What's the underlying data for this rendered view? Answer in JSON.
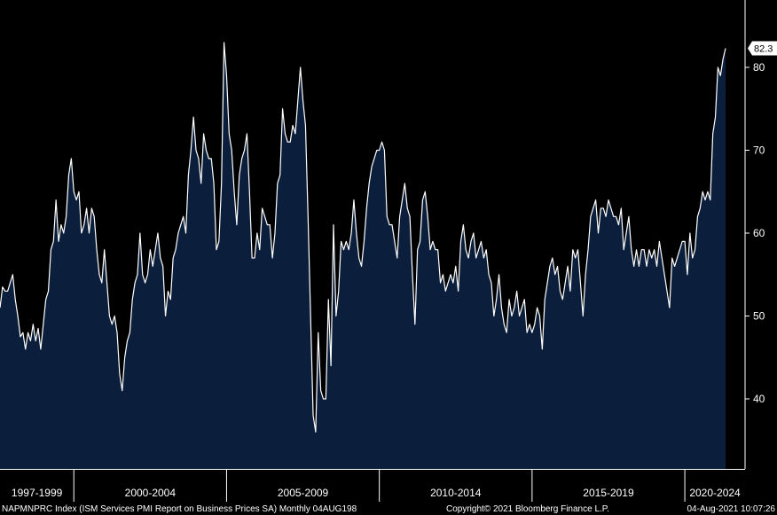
{
  "chart_data": {
    "type": "area",
    "series": [
      {
        "values": [
          51,
          53.5,
          53,
          53,
          54,
          55,
          52,
          50,
          47.5,
          48,
          46,
          48,
          47,
          49,
          47,
          48.5,
          46,
          49,
          52,
          53,
          58,
          59,
          64,
          59,
          61,
          60,
          62,
          67,
          69,
          65,
          64,
          65,
          60,
          61,
          63,
          60,
          63,
          62,
          58,
          55,
          54,
          58,
          54,
          50,
          49,
          50,
          48,
          43,
          41,
          45,
          47,
          48,
          52,
          54,
          55,
          60,
          55,
          54,
          55,
          58,
          56,
          58,
          60,
          57,
          56,
          50,
          53,
          52,
          57,
          58,
          60,
          61,
          62,
          60,
          67,
          70,
          74,
          70,
          69,
          66,
          72,
          70,
          69,
          69,
          66,
          58,
          59,
          66,
          83,
          79,
          72,
          70,
          65,
          61,
          67,
          69,
          70,
          72,
          65,
          57,
          57,
          60,
          58,
          63,
          62,
          61,
          61,
          57,
          60,
          66,
          67,
          75,
          72,
          71,
          71,
          73,
          72,
          76,
          80,
          76,
          73,
          62,
          50,
          38,
          36,
          48,
          41,
          40,
          40,
          52,
          44,
          61,
          50,
          53,
          59,
          58,
          59,
          58,
          60,
          64,
          60,
          57,
          56,
          59,
          63,
          66,
          68,
          69,
          70,
          70,
          71,
          70,
          62,
          61,
          61,
          59,
          57,
          62,
          64,
          66,
          63,
          62,
          55,
          49,
          58,
          59,
          64,
          65,
          62,
          58,
          59,
          58,
          58,
          54,
          55,
          53,
          54,
          55,
          54,
          56,
          53,
          59,
          61,
          58,
          57,
          59,
          60,
          57,
          58,
          59,
          57,
          58,
          55,
          54,
          50,
          52,
          55,
          51,
          49,
          48,
          52,
          50,
          51,
          53,
          50,
          51,
          52,
          48,
          49,
          48,
          49,
          51,
          50,
          46,
          52,
          54,
          56,
          57,
          55,
          56,
          53,
          52,
          54,
          56,
          53,
          58,
          57,
          58,
          54,
          50,
          55,
          58,
          62,
          63,
          64,
          60,
          63,
          63,
          62,
          64,
          63,
          62,
          62,
          61,
          63,
          58,
          60,
          62,
          58,
          56,
          58,
          56,
          58,
          58,
          56,
          58,
          57,
          58,
          56,
          59,
          57,
          55,
          53,
          51,
          57,
          56,
          57,
          58,
          59,
          59,
          55,
          60,
          57,
          58,
          62,
          63,
          65,
          64,
          65,
          64,
          72,
          74,
          80,
          79,
          81,
          82.3
        ]
      }
    ],
    "x_range": [
      "Aug 1997",
      "Jul 2021"
    ],
    "ylim": [
      31,
      88
    ],
    "y_ticks": [
      40,
      50,
      60,
      70,
      80
    ],
    "periods": [
      "1997-1999",
      "2000-2004",
      "2005-2009",
      "2010-2014",
      "2015-2019",
      "2020-2024"
    ],
    "last_value_label": "82.3",
    "axis_side": "right",
    "grid": false,
    "colors": {
      "background": "#000000",
      "area_fill": "#0b1f3d",
      "line": "#ffffff"
    }
  },
  "footer": {
    "ticker": "NAPMNPRC Index (ISM Services PMI Report on Business Prices SA)  Monthly 04AUG198",
    "copyright": "Copyright© 2021 Bloomberg Finance L.P.",
    "timestamp": "04-Aug-2021 10:07:26"
  }
}
